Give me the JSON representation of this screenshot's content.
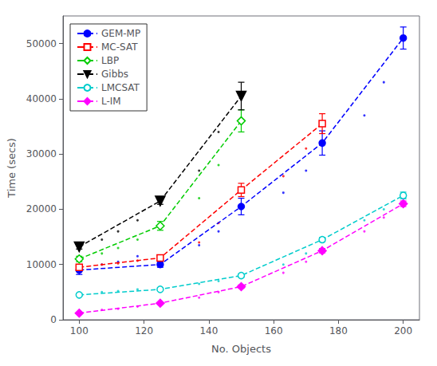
{
  "chart_data": {
    "type": "line",
    "x": [
      100,
      125,
      150,
      175,
      200
    ],
    "xlabel": "No. Objects",
    "ylabel": "Time (secs)",
    "xlim": [
      95,
      205
    ],
    "ylim": [
      0,
      55000
    ],
    "xticks": [
      100,
      120,
      140,
      160,
      180,
      200
    ],
    "yticks": [
      0,
      10000,
      20000,
      30000,
      40000,
      50000
    ],
    "grid": false,
    "legend": "upper left",
    "line_style": "dashed",
    "series": [
      {
        "name": "GEM-MP",
        "color": "#0000FF",
        "marker": "circle",
        "values": [
          9000,
          10000,
          20500,
          32000,
          51000
        ],
        "yerr": [
          800,
          500,
          1500,
          2200,
          2000
        ],
        "trend_x": [
          107,
          112,
          118,
          137,
          143,
          163,
          170,
          188,
          194
        ],
        "trend_y": [
          10000,
          10500,
          11500,
          13500,
          16000,
          23000,
          27000,
          37000,
          43000
        ]
      },
      {
        "name": "MC-SAT",
        "color": "#FF0000",
        "marker": "open-square",
        "values": [
          9500,
          11200,
          23500,
          35500,
          null
        ],
        "yerr": [
          500,
          400,
          1200,
          1800,
          null
        ],
        "trend_x": [
          107,
          112,
          118,
          137,
          143,
          163,
          170
        ],
        "trend_y": [
          10000,
          10200,
          10700,
          14000,
          17500,
          26000,
          31000
        ]
      },
      {
        "name": "LBP",
        "color": "#00CC00",
        "marker": "open-diamond",
        "values": [
          11000,
          17000,
          36000,
          null,
          null
        ],
        "yerr": [
          500,
          800,
          2000,
          null,
          null
        ],
        "trend_x": [
          107,
          112,
          118,
          137,
          143
        ],
        "trend_y": [
          12000,
          13000,
          14500,
          22000,
          28000
        ]
      },
      {
        "name": "Gibbs",
        "color": "#000000",
        "marker": "triangle-down",
        "values": [
          13200,
          21500,
          40500,
          null,
          null
        ],
        "yerr": [
          400,
          600,
          2500,
          null,
          null
        ],
        "trend_x": [
          107,
          112,
          118,
          137,
          143
        ],
        "trend_y": [
          14500,
          16000,
          18000,
          27000,
          34000
        ]
      },
      {
        "name": "LMCSAT",
        "color": "#00CCCC",
        "marker": "open-circle",
        "values": [
          4500,
          5500,
          8000,
          14500,
          22500
        ],
        "yerr": [
          200,
          200,
          300,
          400,
          600
        ],
        "trend_x": [
          107,
          112,
          118,
          137,
          143,
          163,
          170,
          188,
          194
        ],
        "trend_y": [
          5000,
          5200,
          5500,
          6500,
          7000,
          10000,
          12000,
          18000,
          20000
        ]
      },
      {
        "name": "L-IM",
        "color": "#FF00FF",
        "marker": "diamond",
        "values": [
          1200,
          3000,
          6000,
          12500,
          21000
        ],
        "yerr": [
          100,
          150,
          300,
          400,
          500
        ],
        "trend_x": [
          107,
          112,
          118,
          137,
          143,
          163,
          170,
          188,
          194
        ],
        "trend_y": [
          1800,
          2000,
          2400,
          4000,
          5000,
          8500,
          10500,
          16000,
          18500
        ]
      }
    ]
  }
}
